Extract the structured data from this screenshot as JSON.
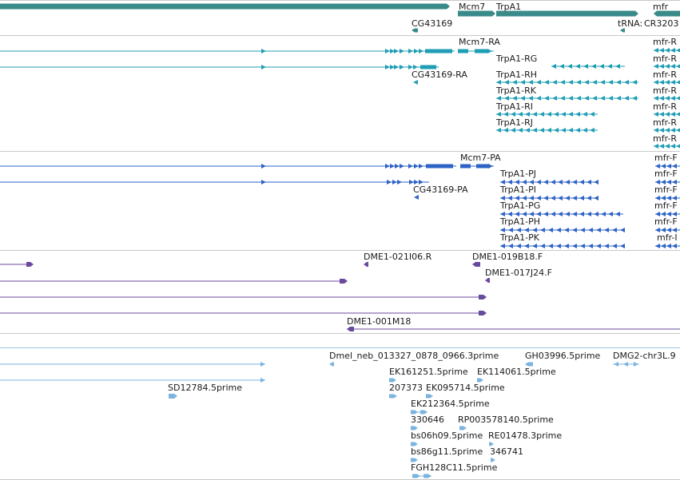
{
  "colors": {
    "gene": "#3a8a8a",
    "transcript": "#1f9db5",
    "protein": "#2e63c6",
    "bac": "#6a4a9e",
    "est": "#7ab4de",
    "separator": "#c8c8c8"
  },
  "tracks": {
    "gene_span": {
      "labels": {
        "mcm7": "Mcm7",
        "trpa1": "TrpA1",
        "mfr": "mfr",
        "cg43169": "CG43169",
        "trna": "tRNA:",
        "cr3203": "CR3203"
      }
    },
    "transcripts": {
      "labels": {
        "mcm7_ra": "Mcm7-RA",
        "cg43169_ra": "CG43169-RA",
        "trpa1_rg": "TrpA1-RG",
        "trpa1_rh": "TrpA1-RH",
        "trpa1_rk": "TrpA1-RK",
        "trpa1_ri": "TrpA1-RI",
        "trpa1_rj": "TrpA1-RJ",
        "mfr_r1": "mfr-R",
        "mfr_r2": "mfr-R",
        "mfr_r3": "mfr-R",
        "mfr_r4": "mfr-R",
        "mfr_r5": "mfr-R",
        "mfr_r6": "mfr-R",
        "mfr_r7": "mfr-R"
      }
    },
    "proteins": {
      "labels": {
        "mcm7_pa": "Mcm7-PA",
        "cg43169_pa": "CG43169-PA",
        "trpa1_pj": "TrpA1-PJ",
        "trpa1_pi": "TrpA1-PI",
        "trpa1_pg": "TrpA1-PG",
        "trpa1_ph": "TrpA1-PH",
        "trpa1_pk": "TrpA1-PK",
        "mfr_p1": "mfr-F",
        "mfr_p2": "mfr-F",
        "mfr_p3": "mfr-F",
        "mfr_p4": "mfr-F",
        "mfr_p5": "mfr-F",
        "mfr_p6": "mfr-I"
      }
    },
    "bac_clones": {
      "labels": {
        "dme1_021i06": "DME1-021I06.R",
        "dme1_019b18": "DME1-019B18.F",
        "dme1_017j24": "DME1-017J24.F",
        "dme1_001m18": "DME1-001M18"
      }
    },
    "est": {
      "labels": {
        "dmel_neb": "Dmel_neb_013327_0878_0966.3prime",
        "gh03996": "GH03996.5prime",
        "dmg2": "DMG2-chr3L.9",
        "ek161251": "EK161251.5prime",
        "ek114061": "EK114061.5prime",
        "sd12784": "SD12784.5prime",
        "n207373": "207373",
        "ek095714": "EK095714.5prime",
        "ek212364": "EK212364.5prime",
        "n330646": "330646",
        "rp003578140": "RP003578140.5prime",
        "bs06h09": "bs06h09.5prime",
        "re01478": "RE01478.3prime",
        "bs86g11": "bs86g11.5prime",
        "n346741": "346741",
        "fgh128c11": "FGH128C11.5prime"
      }
    }
  }
}
